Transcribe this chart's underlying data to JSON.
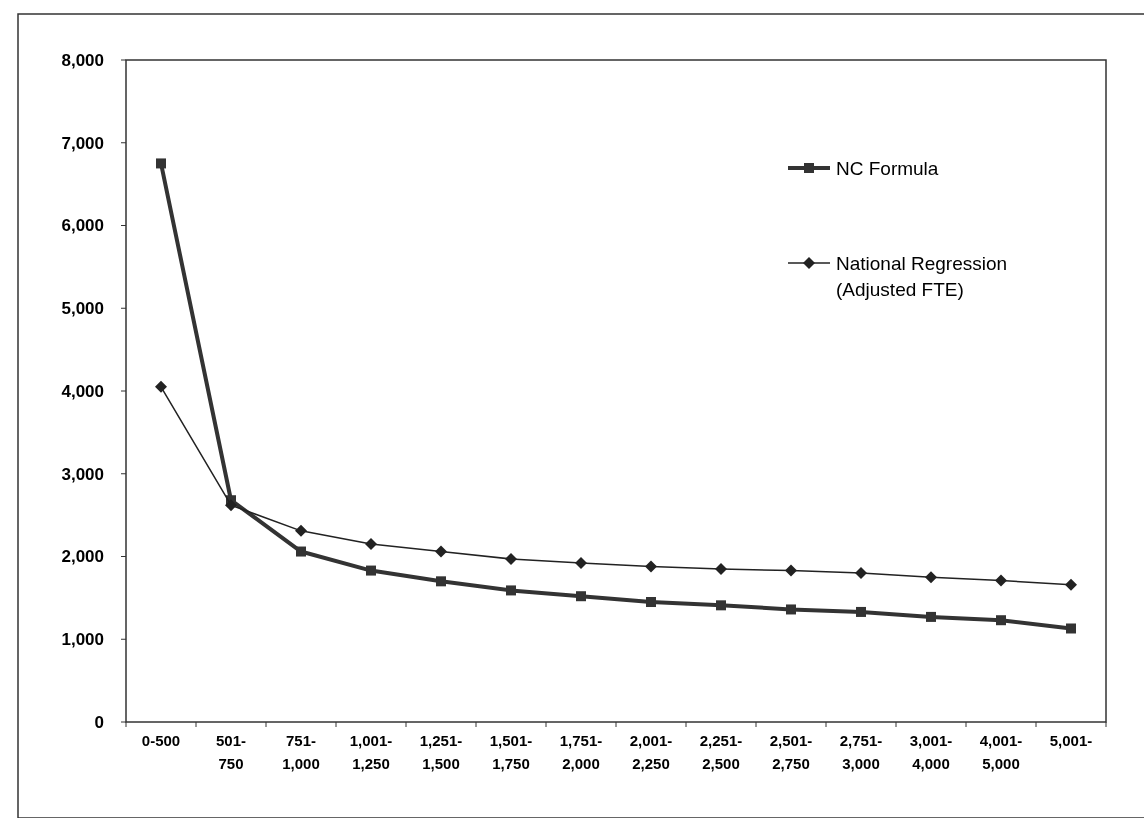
{
  "chart_data": {
    "type": "line",
    "categories": [
      "0-500",
      "501-750",
      "751-1,000",
      "1,001-1,250",
      "1,251-1,500",
      "1,501-1,750",
      "1,751-2,000",
      "2,001-2,250",
      "2,251-2,500",
      "2,501-2,750",
      "2,751-3,000",
      "3,001-4,000",
      "4,001-5,000",
      "5,001-"
    ],
    "series": [
      {
        "name": "NC Formula",
        "color": "#333333",
        "marker": "square",
        "values": [
          6750,
          2680,
          2060,
          1830,
          1700,
          1590,
          1520,
          1450,
          1410,
          1360,
          1330,
          1270,
          1230,
          1130
        ]
      },
      {
        "name": "National Regression (Adjusted FTE)",
        "color": "#222222",
        "marker": "diamond",
        "values": [
          4050,
          2620,
          2310,
          2150,
          2060,
          1970,
          1920,
          1880,
          1850,
          1830,
          1800,
          1750,
          1710,
          1660
        ]
      }
    ],
    "ylim": [
      0,
      8000
    ],
    "yticks": [
      {
        "value": 0,
        "label": "0"
      },
      {
        "value": 1000,
        "label": "1,000"
      },
      {
        "value": 2000,
        "label": "2,000"
      },
      {
        "value": 3000,
        "label": "3,000"
      },
      {
        "value": 4000,
        "label": "4,000"
      },
      {
        "value": 5000,
        "label": "5,000"
      },
      {
        "value": 6000,
        "label": "6,000"
      },
      {
        "value": 7000,
        "label": "7,000"
      },
      {
        "value": 8000,
        "label": "8,000"
      }
    ],
    "grid": false,
    "legend": "top right"
  }
}
